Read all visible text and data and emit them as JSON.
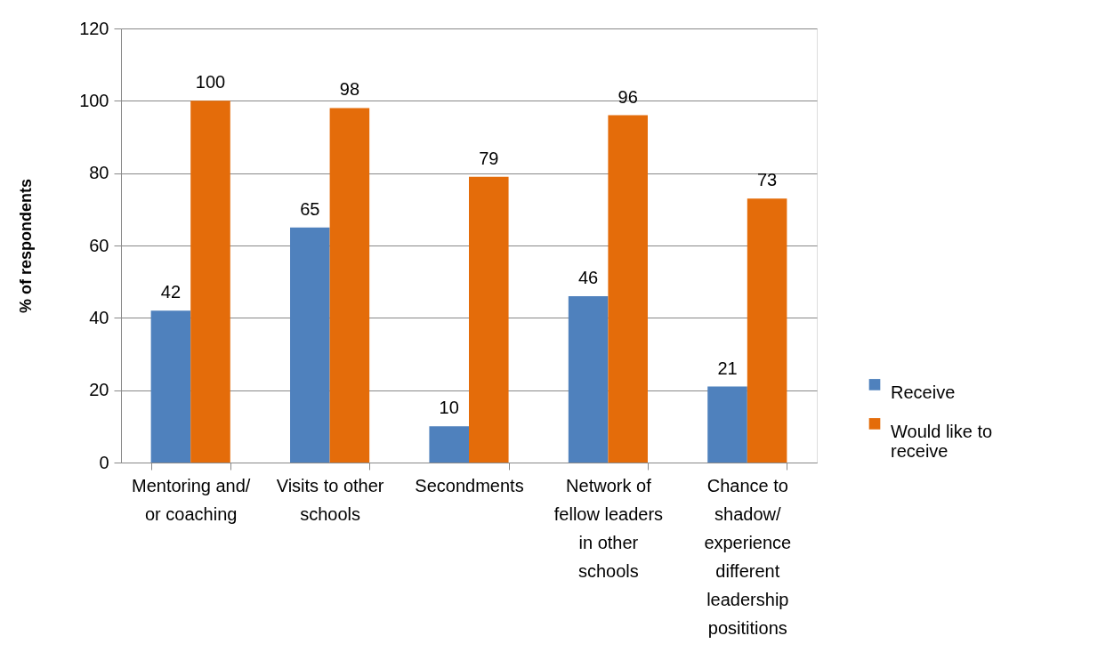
{
  "chart_data": {
    "type": "bar",
    "ylabel": "% of respondents",
    "categories": [
      "Mentoring and/ or coaching",
      "Visits to other schools",
      "Secondments",
      "Network of fellow leaders in other schools",
      "Chance to shadow/ experience different leadership posititions"
    ],
    "series": [
      {
        "name": "Receive",
        "color": "#4f81bd",
        "values": [
          42,
          65,
          10,
          46,
          21
        ]
      },
      {
        "name": "Would like to receive",
        "color": "#e46c0a",
        "values": [
          100,
          98,
          79,
          96,
          73
        ]
      }
    ],
    "ylim": [
      0,
      120
    ],
    "yticks": [
      0,
      20,
      40,
      60,
      80,
      100,
      120
    ],
    "grid": "y",
    "legend": "right",
    "data_labels": true
  }
}
